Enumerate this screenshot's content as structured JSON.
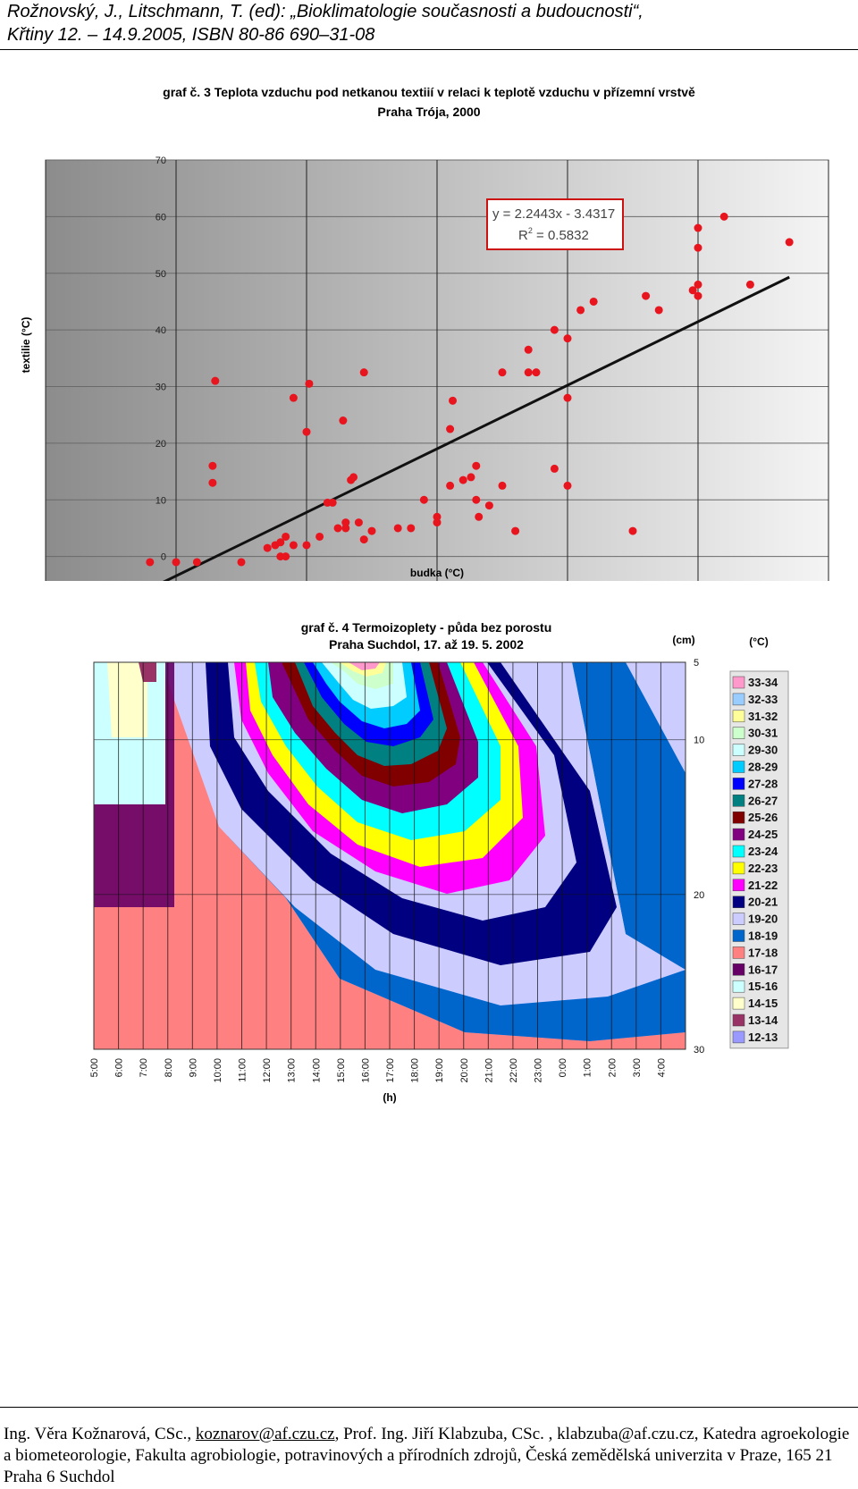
{
  "header": {
    "line1": "Rožnovský, J., Litschmann, T. (ed): „Bioklimatologie současnosti a budoucnosti“,",
    "line2": "Křtiny 12. – 14.9.2005, ISBN 80-86 690–31-08"
  },
  "footer": {
    "text1": "Ing. Věra Kožnarová, CSc., ",
    "email1": "koznarov@af.czu.cz",
    "text2": ", Prof. Ing. Jiří Klabzuba, CSc. , klabzuba@af.czu.cz, Katedra agroekologie a biometeorologie, Fakulta agrobiologie, potravinových a přírodních zdrojů, Česká zemědělská univerzita v Praze, 165 21 Praha 6 Suchdol"
  },
  "colors": {
    "marker": "#e8141e",
    "trendline": "#111111",
    "equation_box": "#cc1111"
  },
  "chart_data": [
    {
      "type": "scatter",
      "title": "graf č. 3 Teplota vzduchu pod netkanou textiií v relaci k teplotě vzduchu v přízemní vrstvě",
      "subtitle": "Praha Trója, 2000",
      "xlabel": "budka (°C)",
      "ylabel": "textilie (°C)",
      "xlim": [
        -5,
        25
      ],
      "ylim": [
        -10,
        70
      ],
      "xticks": [
        "-5",
        "0",
        "5",
        "10",
        "15",
        "20",
        "25"
      ],
      "yticks": [
        "-10",
        "0",
        "10",
        "20",
        "30",
        "40",
        "50",
        "60",
        "70"
      ],
      "grid": true,
      "trendline": {
        "slope": 2.2443,
        "intercept": -3.4317,
        "x_range": [
          -1,
          23.5
        ]
      },
      "equation": "y = 2.2443x - 3.4317",
      "r2_label": "R",
      "r2_sup": "2",
      "r2_value": " = 0.5832",
      "points": [
        [
          -1,
          -1
        ],
        [
          0,
          -1
        ],
        [
          0.8,
          -1
        ],
        [
          1.5,
          31
        ],
        [
          1.4,
          13
        ],
        [
          1.4,
          16
        ],
        [
          2.5,
          -1
        ],
        [
          3.5,
          1.5
        ],
        [
          3.8,
          2
        ],
        [
          4,
          2.5
        ],
        [
          4.2,
          3.5
        ],
        [
          4,
          0
        ],
        [
          4.2,
          0
        ],
        [
          4.5,
          2
        ],
        [
          4.5,
          28
        ],
        [
          5,
          22
        ],
        [
          5,
          2
        ],
        [
          5.1,
          30.5
        ],
        [
          5.5,
          3.5
        ],
        [
          5.8,
          9.5
        ],
        [
          6,
          9.5
        ],
        [
          6.2,
          5
        ],
        [
          6.4,
          24
        ],
        [
          6.5,
          5
        ],
        [
          6.5,
          6
        ],
        [
          6.7,
          13.5
        ],
        [
          6.8,
          14
        ],
        [
          7,
          6
        ],
        [
          7.2,
          32.5
        ],
        [
          7.2,
          3
        ],
        [
          7.5,
          4.5
        ],
        [
          8.5,
          5
        ],
        [
          9,
          5
        ],
        [
          9.5,
          10
        ],
        [
          10,
          7
        ],
        [
          10,
          6
        ],
        [
          10.5,
          22.5
        ],
        [
          10.5,
          12.5
        ],
        [
          10.6,
          27.5
        ],
        [
          11,
          13.5
        ],
        [
          11.3,
          14
        ],
        [
          11.5,
          16
        ],
        [
          11.5,
          10
        ],
        [
          11.6,
          7
        ],
        [
          12,
          9
        ],
        [
          12.5,
          12.5
        ],
        [
          12.5,
          32.5
        ],
        [
          13,
          4.5
        ],
        [
          13.5,
          32.5
        ],
        [
          13.5,
          36.5
        ],
        [
          13.8,
          32.5
        ],
        [
          14.5,
          15.5
        ],
        [
          14.5,
          40
        ],
        [
          15,
          38.5
        ],
        [
          15,
          12.5
        ],
        [
          15,
          28
        ],
        [
          15.5,
          43.5
        ],
        [
          16,
          45
        ],
        [
          17.5,
          4.5
        ],
        [
          18,
          46
        ],
        [
          18.5,
          43.5
        ],
        [
          19.8,
          47
        ],
        [
          20,
          48
        ],
        [
          20,
          46
        ],
        [
          20,
          54.5
        ],
        [
          20,
          58
        ],
        [
          21,
          60
        ],
        [
          22,
          48
        ],
        [
          23.5,
          55.5
        ]
      ]
    },
    {
      "type": "heatmap",
      "title": "graf č. 4 Termoizoplety - půda bez porostu",
      "subtitle": "Praha Suchdol,  17. až 19. 5. 2002",
      "xlabel": "(h)",
      "ylabel": "(cm)",
      "legend_unit": "(°C)",
      "x": [
        "5:00",
        "6:00",
        "7:00",
        "8:00",
        "9:00",
        "10:00",
        "11:00",
        "12:00",
        "13:00",
        "14:00",
        "15:00",
        "16:00",
        "17:00",
        "18:00",
        "19:00",
        "20:00",
        "21:00",
        "22:00",
        "23:00",
        "0:00",
        "1:00",
        "2:00",
        "3:00",
        "4:00"
      ],
      "y_ticks": [
        "5",
        "10",
        "20",
        "30"
      ],
      "y_values": [
        5,
        10,
        20,
        30
      ],
      "legend": [
        {
          "label": "33-34",
          "color": "#ff99cc"
        },
        {
          "label": "32-33",
          "color": "#99ccff"
        },
        {
          "label": "31-32",
          "color": "#ffff99"
        },
        {
          "label": "30-31",
          "color": "#ccffcc"
        },
        {
          "label": "29-30",
          "color": "#ccffff"
        },
        {
          "label": "28-29",
          "color": "#00ccff"
        },
        {
          "label": "27-28",
          "color": "#0000ff"
        },
        {
          "label": "26-27",
          "color": "#008080"
        },
        {
          "label": "25-26",
          "color": "#800000"
        },
        {
          "label": "24-25",
          "color": "#800080"
        },
        {
          "label": "23-24",
          "color": "#00ffff"
        },
        {
          "label": "22-23",
          "color": "#ffff00"
        },
        {
          "label": "21-22",
          "color": "#ff00ff"
        },
        {
          "label": "20-21",
          "color": "#000080"
        },
        {
          "label": "19-20",
          "color": "#ccccff"
        },
        {
          "label": "18-19",
          "color": "#0066cc"
        },
        {
          "label": "17-18",
          "color": "#ff8080"
        },
        {
          "label": "16-17",
          "color": "#660066"
        },
        {
          "label": "15-16",
          "color": "#ccffff"
        },
        {
          "label": "14-15",
          "color": "#ffffcc"
        },
        {
          "label": "13-14",
          "color": "#993366"
        },
        {
          "label": "12-13",
          "color": "#9999ff"
        }
      ]
    }
  ]
}
